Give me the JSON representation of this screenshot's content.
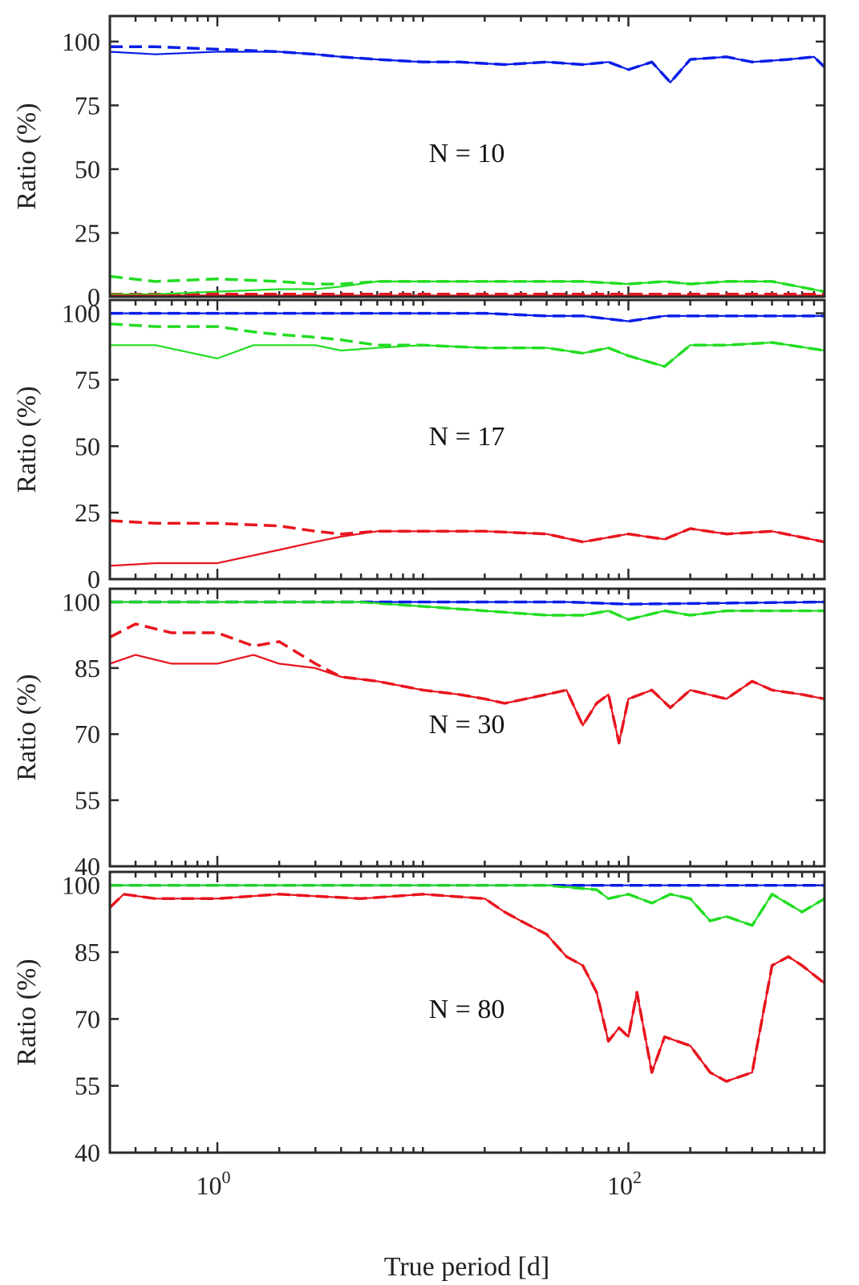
{
  "figure": {
    "xlabel": "True period [d]",
    "xaxis_scale": "log",
    "xlim": [
      0.3,
      900
    ],
    "x_major_ticks": [
      1,
      100
    ],
    "x_tick_base": "10",
    "x_tick_exponents": [
      "0",
      "2"
    ]
  },
  "colors": {
    "blue": "#0a1ee6",
    "green": "#22dd22",
    "red": "#e8141e",
    "axis": "#2a2a2a"
  },
  "chart_data": [
    {
      "type": "line",
      "annotation": "N = 10",
      "ylabel": "Ratio (%)",
      "ylim": [
        0,
        110
      ],
      "yticks": [
        0,
        25,
        50,
        75,
        100
      ],
      "series": [
        {
          "name": "blue-dashed",
          "color": "blue",
          "style": "dashed",
          "x": [
            0.3,
            0.5,
            1,
            2,
            3,
            4,
            6,
            10,
            15,
            25,
            40,
            60,
            80,
            100,
            130,
            160,
            200,
            300,
            400,
            600,
            800,
            900
          ],
          "y": [
            98,
            98,
            97,
            96,
            95,
            94,
            93,
            92,
            92,
            91,
            92,
            91,
            92,
            89,
            92,
            84,
            93,
            94,
            92,
            93,
            94,
            90
          ]
        },
        {
          "name": "blue-solid",
          "color": "blue",
          "style": "solid",
          "x": [
            0.3,
            0.5,
            1,
            2,
            3,
            4,
            6,
            10,
            15,
            25,
            40,
            60,
            80,
            100,
            130,
            160,
            200,
            300,
            400,
            600,
            800,
            900
          ],
          "y": [
            96,
            95,
            96,
            96,
            95,
            94,
            93,
            92,
            92,
            91,
            92,
            91,
            92,
            89,
            92,
            84,
            93,
            94,
            92,
            93,
            94,
            90
          ]
        },
        {
          "name": "green-dashed",
          "color": "green",
          "style": "dashed",
          "x": [
            0.3,
            0.5,
            1,
            2,
            3,
            4,
            6,
            10,
            20,
            40,
            60,
            100,
            150,
            200,
            300,
            500,
            900
          ],
          "y": [
            8,
            6,
            7,
            6,
            5,
            5,
            6,
            6,
            6,
            6,
            6,
            5,
            6,
            5,
            6,
            6,
            2
          ]
        },
        {
          "name": "green-solid",
          "color": "green",
          "style": "solid",
          "x": [
            0.3,
            0.5,
            1,
            2,
            3,
            4,
            6,
            10,
            20,
            40,
            60,
            100,
            150,
            200,
            300,
            500,
            900
          ],
          "y": [
            1,
            1,
            2,
            3,
            3,
            4,
            6,
            6,
            6,
            6,
            6,
            5,
            6,
            5,
            6,
            6,
            2
          ]
        },
        {
          "name": "red-dashed",
          "color": "red",
          "style": "dashed",
          "x": [
            0.3,
            1,
            10,
            100,
            900
          ],
          "y": [
            1,
            1,
            1,
            1,
            1
          ]
        },
        {
          "name": "red-solid",
          "color": "red",
          "style": "solid",
          "x": [
            0.3,
            1,
            10,
            100,
            900
          ],
          "y": [
            0.5,
            0.5,
            0.5,
            0.5,
            0.5
          ]
        }
      ]
    },
    {
      "type": "line",
      "annotation": "N = 17",
      "ylabel": "Ratio (%)",
      "ylim": [
        0,
        105
      ],
      "yticks": [
        0,
        25,
        50,
        75,
        100
      ],
      "series": [
        {
          "name": "blue-dashed",
          "color": "blue",
          "style": "dashed",
          "x": [
            0.3,
            1,
            5,
            20,
            40,
            60,
            100,
            150,
            300,
            900
          ],
          "y": [
            100,
            100,
            100,
            100,
            99,
            99,
            97,
            99,
            99,
            99
          ]
        },
        {
          "name": "blue-solid",
          "color": "blue",
          "style": "solid",
          "x": [
            0.3,
            1,
            5,
            20,
            40,
            60,
            100,
            150,
            300,
            900
          ],
          "y": [
            100,
            100,
            100,
            100,
            99,
            99,
            97,
            99,
            99,
            99
          ]
        },
        {
          "name": "green-dashed",
          "color": "green",
          "style": "dashed",
          "x": [
            0.3,
            0.5,
            1,
            1.5,
            2,
            3,
            4,
            6,
            10,
            20,
            40,
            60,
            80,
            100,
            150,
            200,
            300,
            500,
            900
          ],
          "y": [
            96,
            95,
            95,
            93,
            92,
            91,
            90,
            88,
            88,
            87,
            87,
            85,
            87,
            84,
            80,
            88,
            88,
            89,
            86
          ]
        },
        {
          "name": "green-solid",
          "color": "green",
          "style": "solid",
          "x": [
            0.3,
            0.5,
            1,
            1.5,
            2,
            3,
            4,
            6,
            10,
            20,
            40,
            60,
            80,
            100,
            150,
            200,
            300,
            500,
            900
          ],
          "y": [
            88,
            88,
            83,
            88,
            88,
            88,
            86,
            87,
            88,
            87,
            87,
            85,
            87,
            84,
            80,
            88,
            88,
            89,
            86
          ]
        },
        {
          "name": "red-dashed",
          "color": "red",
          "style": "dashed",
          "x": [
            0.3,
            0.5,
            1,
            2,
            3,
            4,
            6,
            10,
            20,
            40,
            60,
            100,
            150,
            200,
            300,
            500,
            900
          ],
          "y": [
            22,
            21,
            21,
            20,
            18,
            17,
            18,
            18,
            18,
            17,
            14,
            17,
            15,
            19,
            17,
            18,
            14
          ]
        },
        {
          "name": "red-solid",
          "color": "red",
          "style": "solid",
          "x": [
            0.3,
            0.5,
            1,
            2,
            3,
            4,
            6,
            10,
            20,
            40,
            60,
            100,
            150,
            200,
            300,
            500,
            900
          ],
          "y": [
            5,
            6,
            6,
            11,
            14,
            16,
            18,
            18,
            18,
            17,
            14,
            17,
            15,
            19,
            17,
            18,
            14
          ]
        }
      ]
    },
    {
      "type": "line",
      "annotation": "N = 30",
      "ylabel": "Ratio (%)",
      "ylim": [
        40,
        103
      ],
      "yticks": [
        40,
        55,
        70,
        85,
        100
      ],
      "series": [
        {
          "name": "blue-dashed",
          "color": "blue",
          "style": "dashed",
          "x": [
            0.3,
            1,
            10,
            50,
            100,
            900
          ],
          "y": [
            100,
            100,
            100,
            100,
            99.5,
            100
          ]
        },
        {
          "name": "blue-solid",
          "color": "blue",
          "style": "solid",
          "x": [
            0.3,
            1,
            10,
            50,
            100,
            900
          ],
          "y": [
            100,
            100,
            100,
            100,
            99.5,
            100
          ]
        },
        {
          "name": "green-dashed",
          "color": "green",
          "style": "dashed",
          "x": [
            0.3,
            1,
            5,
            10,
            20,
            40,
            60,
            80,
            100,
            150,
            200,
            300,
            500,
            900
          ],
          "y": [
            100,
            100,
            100,
            99,
            98,
            97,
            97,
            98,
            96,
            98,
            97,
            98,
            98,
            98
          ]
        },
        {
          "name": "green-solid",
          "color": "green",
          "style": "solid",
          "x": [
            0.3,
            1,
            5,
            10,
            20,
            40,
            60,
            80,
            100,
            150,
            200,
            300,
            500,
            900
          ],
          "y": [
            100,
            100,
            100,
            99,
            98,
            97,
            97,
            98,
            96,
            98,
            97,
            98,
            98,
            98
          ]
        },
        {
          "name": "red-dashed",
          "color": "red",
          "style": "dashed",
          "x": [
            0.3,
            0.4,
            0.6,
            1,
            1.5,
            2,
            3,
            4,
            6,
            10,
            15,
            20,
            25,
            40,
            50,
            60,
            70,
            80,
            90,
            100,
            130,
            160,
            200,
            300,
            400,
            500,
            700,
            900
          ],
          "y": [
            92,
            95,
            93,
            93,
            90,
            91,
            86,
            83,
            82,
            80,
            79,
            78,
            77,
            79,
            80,
            72,
            77,
            79,
            68,
            78,
            80,
            76,
            80,
            78,
            82,
            80,
            79,
            78
          ]
        },
        {
          "name": "red-solid",
          "color": "red",
          "style": "solid",
          "x": [
            0.3,
            0.4,
            0.6,
            1,
            1.5,
            2,
            3,
            4,
            6,
            10,
            15,
            20,
            25,
            40,
            50,
            60,
            70,
            80,
            90,
            100,
            130,
            160,
            200,
            300,
            400,
            500,
            700,
            900
          ],
          "y": [
            86,
            88,
            86,
            86,
            88,
            86,
            85,
            83,
            82,
            80,
            79,
            78,
            77,
            79,
            80,
            72,
            77,
            79,
            68,
            78,
            80,
            76,
            80,
            78,
            82,
            80,
            79,
            78
          ]
        }
      ]
    },
    {
      "type": "line",
      "annotation": "N = 80",
      "ylabel": "Ratio (%)",
      "ylim": [
        40,
        103
      ],
      "yticks": [
        40,
        55,
        70,
        85,
        100
      ],
      "series": [
        {
          "name": "blue-dashed",
          "color": "blue",
          "style": "dashed",
          "x": [
            0.3,
            1,
            10,
            100,
            900
          ],
          "y": [
            100,
            100,
            100,
            100,
            100
          ]
        },
        {
          "name": "blue-solid",
          "color": "blue",
          "style": "solid",
          "x": [
            0.3,
            1,
            10,
            100,
            900
          ],
          "y": [
            100,
            100,
            100,
            100,
            100
          ]
        },
        {
          "name": "green-dashed",
          "color": "green",
          "style": "dashed",
          "x": [
            0.3,
            1,
            10,
            40,
            70,
            80,
            100,
            130,
            160,
            200,
            250,
            300,
            400,
            500,
            700,
            900
          ],
          "y": [
            100,
            100,
            100,
            100,
            99,
            97,
            98,
            96,
            98,
            97,
            92,
            93,
            91,
            98,
            94,
            97
          ]
        },
        {
          "name": "green-solid",
          "color": "green",
          "style": "solid",
          "x": [
            0.3,
            1,
            10,
            40,
            70,
            80,
            100,
            130,
            160,
            200,
            250,
            300,
            400,
            500,
            700,
            900
          ],
          "y": [
            100,
            100,
            100,
            100,
            99,
            97,
            98,
            96,
            98,
            97,
            92,
            93,
            91,
            98,
            94,
            97
          ]
        },
        {
          "name": "red-dashed",
          "color": "red",
          "style": "dashed",
          "x": [
            0.3,
            0.35,
            0.5,
            1,
            2,
            5,
            10,
            20,
            25,
            30,
            40,
            50,
            60,
            70,
            80,
            90,
            100,
            110,
            130,
            150,
            200,
            250,
            300,
            400,
            500,
            600,
            700,
            900
          ],
          "y": [
            95,
            98,
            97,
            97,
            98,
            97,
            98,
            97,
            94,
            92,
            89,
            84,
            82,
            76,
            65,
            68,
            66,
            76,
            58,
            66,
            64,
            58,
            56,
            58,
            82,
            84,
            82,
            78
          ]
        },
        {
          "name": "red-solid",
          "color": "red",
          "style": "solid",
          "x": [
            0.3,
            0.35,
            0.5,
            1,
            2,
            5,
            10,
            20,
            25,
            30,
            40,
            50,
            60,
            70,
            80,
            90,
            100,
            110,
            130,
            150,
            200,
            250,
            300,
            400,
            500,
            600,
            700,
            900
          ],
          "y": [
            95,
            98,
            97,
            97,
            98,
            97,
            98,
            97,
            94,
            92,
            89,
            84,
            82,
            76,
            65,
            68,
            66,
            76,
            58,
            66,
            64,
            58,
            56,
            58,
            82,
            84,
            82,
            78
          ]
        }
      ]
    }
  ]
}
